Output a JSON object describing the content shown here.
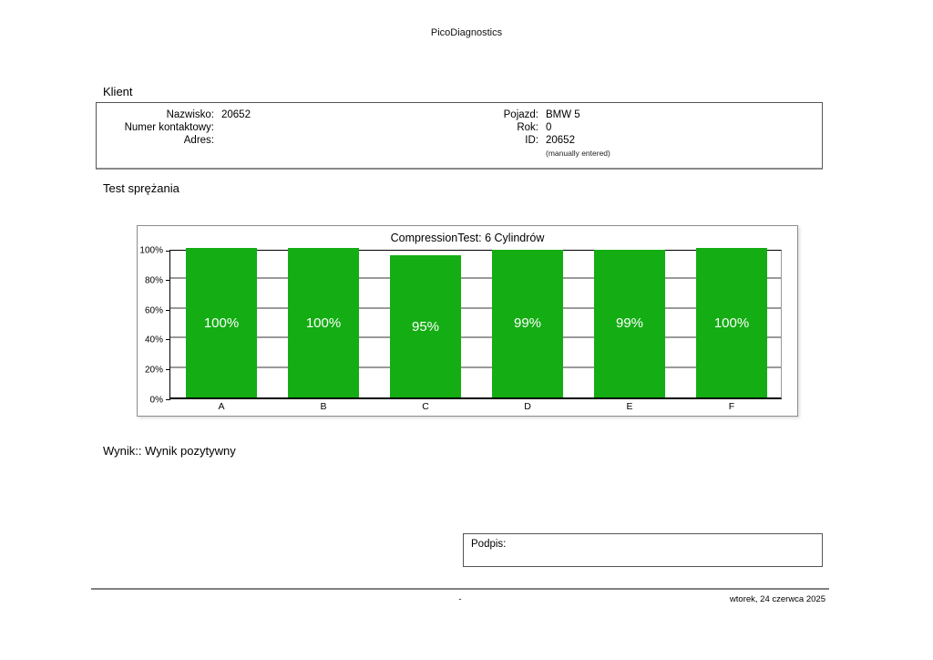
{
  "page": {
    "app_title": "PicoDiagnostics",
    "footer": {
      "center": "-",
      "date": "wtorek, 24 czerwca 2025"
    }
  },
  "client": {
    "section_title": "Klient",
    "left_fields": [
      {
        "label": "Nazwisko:",
        "value": "20652"
      },
      {
        "label": "Numer kontaktowy:",
        "value": ""
      },
      {
        "label": "Adres:",
        "value": ""
      }
    ],
    "right_fields": [
      {
        "label": "Pojazd:",
        "value": "BMW 5"
      },
      {
        "label": "Rok:",
        "value": "0"
      },
      {
        "label": "ID:",
        "value": "20652"
      }
    ],
    "id_note": "(manually entered)"
  },
  "test": {
    "section_title": "Test sprężania",
    "result_label": "Wynik::",
    "result_value": "Wynik pozytywny"
  },
  "signature": {
    "label": "Podpis:"
  },
  "chart_data": {
    "type": "bar",
    "title": "CompressionTest: 6 Cylindrów",
    "categories": [
      "A",
      "B",
      "C",
      "D",
      "E",
      "F"
    ],
    "values": [
      100,
      100,
      95,
      99,
      99,
      100
    ],
    "value_labels": [
      "100%",
      "100%",
      "95%",
      "99%",
      "99%",
      "100%"
    ],
    "xlabel": "",
    "ylabel": "",
    "ylim": [
      0,
      100
    ],
    "yticks": [
      "0%",
      "20%",
      "40%",
      "60%",
      "80%",
      "100%"
    ],
    "grid": true,
    "legend": "none",
    "bar_color": "#14ad14",
    "bar_label_color": "#ffffff"
  }
}
